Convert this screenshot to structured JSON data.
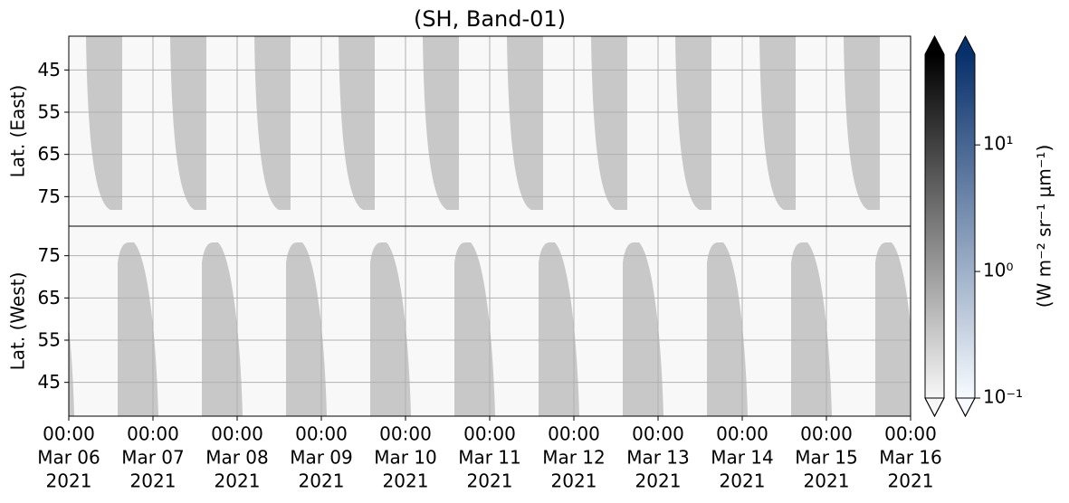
{
  "chart_data": {
    "type": "heatmap",
    "title": "(SH, Band-01)",
    "panels": [
      {
        "ylabel": "Lat. (East)",
        "ylim": [
          82,
          37
        ],
        "yticks": [
          45,
          55,
          65,
          75
        ]
      },
      {
        "ylabel": "Lat. (West)",
        "ylim": [
          37,
          82
        ],
        "yticks": [
          75,
          65,
          55,
          45
        ]
      }
    ],
    "xlim": [
      "2021-03-06T00:00",
      "2021-03-16T00:00"
    ],
    "xticks": [
      {
        "value": "2021-03-06T00:00",
        "label": [
          "00:00",
          "Mar 06",
          "2021"
        ]
      },
      {
        "value": "2021-03-07T00:00",
        "label": [
          "00:00",
          "Mar 07",
          "2021"
        ]
      },
      {
        "value": "2021-03-08T00:00",
        "label": [
          "00:00",
          "Mar 08",
          "2021"
        ]
      },
      {
        "value": "2021-03-09T00:00",
        "label": [
          "00:00",
          "Mar 09",
          "2021"
        ]
      },
      {
        "value": "2021-03-10T00:00",
        "label": [
          "00:00",
          "Mar 10",
          "2021"
        ]
      },
      {
        "value": "2021-03-11T00:00",
        "label": [
          "00:00",
          "Mar 11",
          "2021"
        ]
      },
      {
        "value": "2021-03-12T00:00",
        "label": [
          "00:00",
          "Mar 12",
          "2021"
        ]
      },
      {
        "value": "2021-03-13T00:00",
        "label": [
          "00:00",
          "Mar 13",
          "2021"
        ]
      },
      {
        "value": "2021-03-14T00:00",
        "label": [
          "00:00",
          "Mar 14",
          "2021"
        ]
      },
      {
        "value": "2021-03-15T00:00",
        "label": [
          "00:00",
          "Mar 15",
          "2021"
        ]
      },
      {
        "value": "2021-03-16T00:00",
        "label": [
          "00:00",
          "Mar 16",
          "2021"
        ]
      }
    ],
    "grid": true,
    "colorbar": {
      "label": "(W m⁻² sr⁻¹ μm⁻¹)",
      "log_scale": true,
      "ylim": [
        0.1,
        52
      ],
      "yticks": [
        {
          "value": 0.1,
          "label": "10⁻¹"
        },
        {
          "value": 1,
          "label": "10⁰"
        },
        {
          "value": 10,
          "label": "10¹"
        }
      ],
      "colormaps": [
        [
          "#f7f7f7",
          "#000000"
        ],
        [
          "#f7fbff",
          "#08306b"
        ]
      ]
    }
  }
}
